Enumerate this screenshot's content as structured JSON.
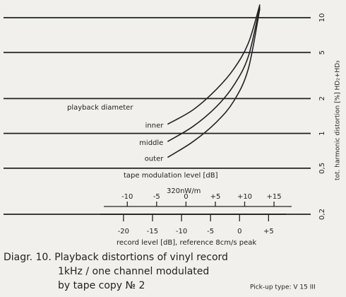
{
  "chart_data": {
    "type": "line",
    "title": "Diagr. 10. Playback distortions of vinyl record",
    "subtitle": [
      "1kHz / one channel modulated",
      "by tape copy № 2"
    ],
    "note": "Pick-up type: V 15 III",
    "legend_title": "playback diameter",
    "y_label": "tot. harmonic distortion [%] HD₂+HD₃",
    "x_label": "record level [dB], reference 8cm/s peak",
    "x2_label": "tape modulation level [dB]",
    "x2_unit": "320nW/m",
    "log_y": true,
    "grid": true,
    "color": "#222222",
    "x": [
      -12.4,
      -8,
      -4,
      -1,
      1.5,
      3.5
    ],
    "series": [
      {
        "name": "inner",
        "color": "#222222",
        "values": [
          1.2,
          1.6,
          2.4,
          3.6,
          6,
          13
        ]
      },
      {
        "name": "middle",
        "color": "#222222",
        "values": [
          0.85,
          1.15,
          1.7,
          2.6,
          4.6,
          12.5
        ]
      },
      {
        "name": "outer",
        "color": "#222222",
        "values": [
          0.62,
          0.85,
          1.25,
          1.9,
          3.6,
          12
        ]
      }
    ],
    "ylim": [
      0.2,
      10
    ],
    "yticks": [
      10,
      5,
      2,
      1,
      {
        "value": 0.5,
        "label": "0,5"
      },
      {
        "value": 0.2,
        "label": "0,2"
      }
    ],
    "xlim": [
      -24,
      8
    ],
    "xticks": [
      -20,
      -15,
      -10,
      -5,
      0,
      {
        "value": 5,
        "label": "+5"
      }
    ],
    "x2lim": [
      -14,
      18
    ],
    "x2ticks": [
      -10,
      -5,
      0,
      {
        "value": 5,
        "label": "+5"
      },
      {
        "value": 10,
        "label": "+10"
      },
      {
        "value": 15,
        "label": "+15"
      }
    ]
  }
}
